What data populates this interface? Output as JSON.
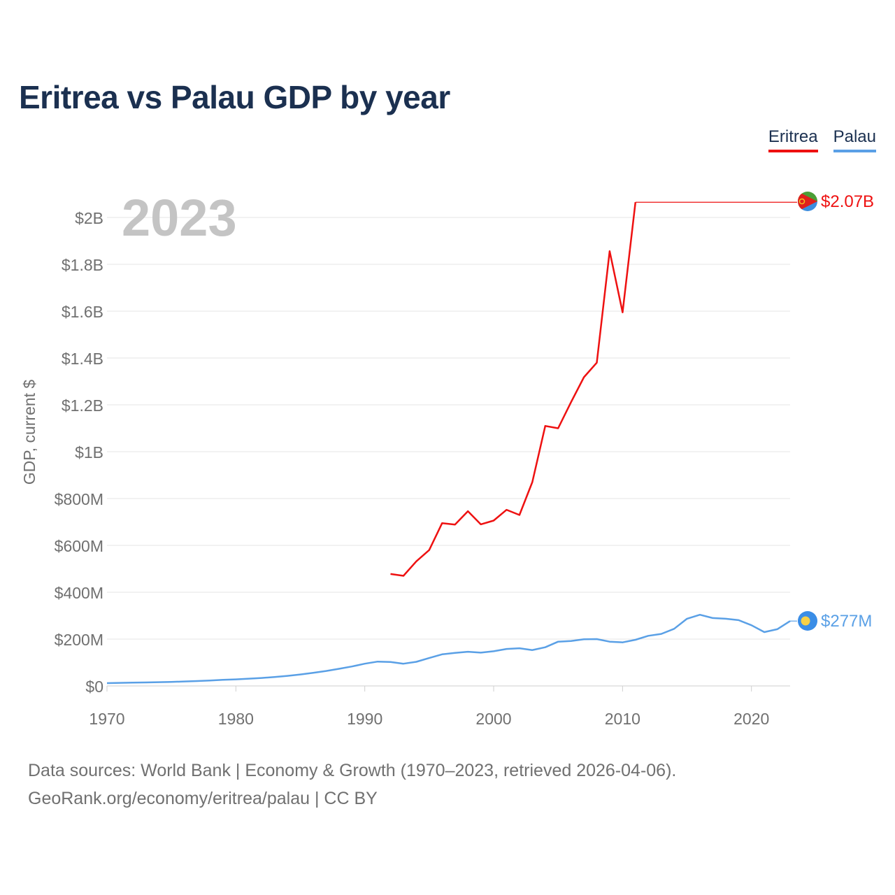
{
  "title": "Eritrea vs Palau GDP by year",
  "legend": [
    {
      "name": "Eritrea",
      "color": "#ee1111"
    },
    {
      "name": "Palau",
      "color": "#5aa0e6"
    }
  ],
  "footer": {
    "line1": "Data sources: World Bank | Economy & Growth (1970–2023, retrieved 2026-04-06).",
    "line2": "GeoRank.org/economy/eritrea/palau | CC BY"
  },
  "chart_data": {
    "type": "line",
    "title": "Eritrea vs Palau GDP by year",
    "year_label": "2023",
    "ylabel": "GDP, current $",
    "xlabel": "",
    "xlim": [
      1970,
      2023
    ],
    "ylim": [
      0,
      2100000000
    ],
    "x_ticks": [
      1970,
      1980,
      1990,
      2000,
      2010,
      2020
    ],
    "y_ticks": [
      {
        "value": 0,
        "label": "$0"
      },
      {
        "value": 200000000,
        "label": "$200M"
      },
      {
        "value": 400000000,
        "label": "$400M"
      },
      {
        "value": 600000000,
        "label": "$600M"
      },
      {
        "value": 800000000,
        "label": "$800M"
      },
      {
        "value": 1000000000,
        "label": "$1B"
      },
      {
        "value": 1200000000,
        "label": "$1.2B"
      },
      {
        "value": 1400000000,
        "label": "$1.4B"
      },
      {
        "value": 1600000000,
        "label": "$1.6B"
      },
      {
        "value": 1800000000,
        "label": "$1.8B"
      },
      {
        "value": 2000000000,
        "label": "$2B"
      }
    ],
    "grid": true,
    "series": [
      {
        "name": "Eritrea",
        "color": "#ee1111",
        "end_label": "$2.07B",
        "flag_icon": "eritrea-flag-icon",
        "points": [
          [
            1992,
            478000000
          ],
          [
            1993,
            470000000
          ],
          [
            1994,
            532000000
          ],
          [
            1995,
            580000000
          ],
          [
            1996,
            695000000
          ],
          [
            1997,
            689000000
          ],
          [
            1998,
            746000000
          ],
          [
            1999,
            690000000
          ],
          [
            2000,
            706000000
          ],
          [
            2001,
            752000000
          ],
          [
            2002,
            730000000
          ],
          [
            2003,
            870000000
          ],
          [
            2004,
            1110000000
          ],
          [
            2005,
            1100000000
          ],
          [
            2006,
            1211000000
          ],
          [
            2007,
            1318000000
          ],
          [
            2008,
            1380000000
          ],
          [
            2009,
            1856000000
          ],
          [
            2010,
            1595000000
          ],
          [
            2011,
            2065000000
          ]
        ],
        "carry_forward_to": 2023,
        "latest_value": 2065000000
      },
      {
        "name": "Palau",
        "color": "#5aa0e6",
        "end_label": "$277M",
        "flag_icon": "palau-flag-icon",
        "points": [
          [
            1970,
            12000000
          ],
          [
            1971,
            13000000
          ],
          [
            1972,
            14000000
          ],
          [
            1973,
            15000000
          ],
          [
            1974,
            16000000
          ],
          [
            1975,
            17000000
          ],
          [
            1976,
            19000000
          ],
          [
            1977,
            21000000
          ],
          [
            1978,
            23000000
          ],
          [
            1979,
            26000000
          ],
          [
            1980,
            28000000
          ],
          [
            1981,
            31000000
          ],
          [
            1982,
            34000000
          ],
          [
            1983,
            38000000
          ],
          [
            1984,
            43000000
          ],
          [
            1985,
            49000000
          ],
          [
            1986,
            56000000
          ],
          [
            1987,
            64000000
          ],
          [
            1988,
            73000000
          ],
          [
            1989,
            83000000
          ],
          [
            1990,
            95000000
          ],
          [
            1991,
            104000000
          ],
          [
            1992,
            102000000
          ],
          [
            1993,
            95000000
          ],
          [
            1994,
            103000000
          ],
          [
            1995,
            119000000
          ],
          [
            1996,
            135000000
          ],
          [
            1997,
            141000000
          ],
          [
            1998,
            146000000
          ],
          [
            1999,
            142000000
          ],
          [
            2000,
            148000000
          ],
          [
            2001,
            158000000
          ],
          [
            2002,
            161000000
          ],
          [
            2003,
            153000000
          ],
          [
            2004,
            165000000
          ],
          [
            2005,
            189000000
          ],
          [
            2006,
            192000000
          ],
          [
            2007,
            199000000
          ],
          [
            2008,
            200000000
          ],
          [
            2009,
            189000000
          ],
          [
            2010,
            186000000
          ],
          [
            2011,
            197000000
          ],
          [
            2012,
            214000000
          ],
          [
            2013,
            222000000
          ],
          [
            2014,
            244000000
          ],
          [
            2015,
            287000000
          ],
          [
            2016,
            304000000
          ],
          [
            2017,
            290000000
          ],
          [
            2018,
            287000000
          ],
          [
            2019,
            281000000
          ],
          [
            2020,
            259000000
          ],
          [
            2021,
            230000000
          ],
          [
            2022,
            242000000
          ],
          [
            2023,
            277000000
          ]
        ],
        "latest_value": 277000000
      }
    ]
  }
}
